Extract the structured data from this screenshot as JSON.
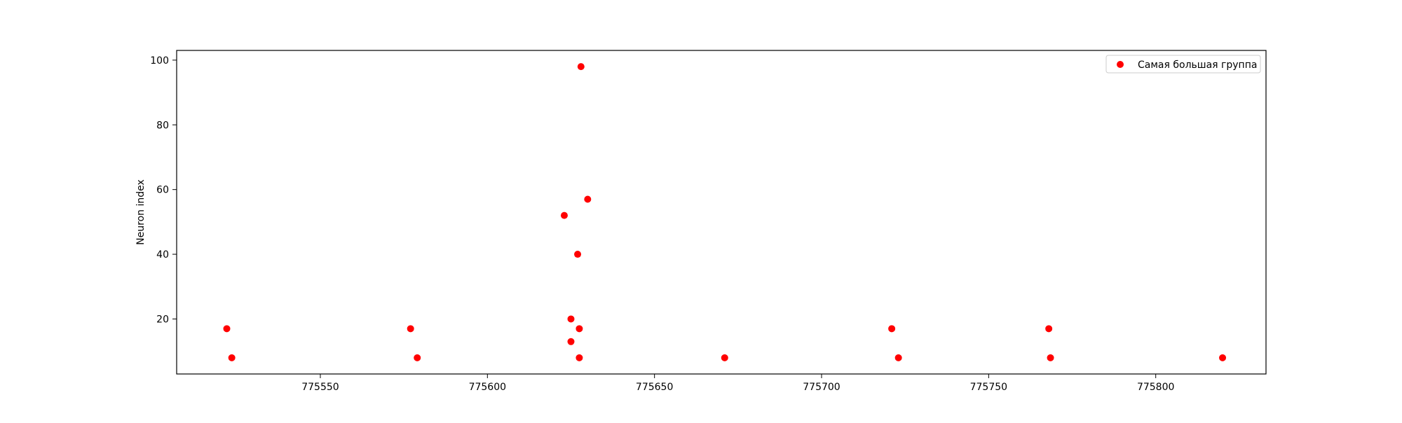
{
  "chart_data": {
    "type": "scatter",
    "title": "",
    "xlabel": "",
    "ylabel": "Neuron index",
    "xlim": [
      775507,
      775833
    ],
    "ylim": [
      3,
      103
    ],
    "xticks": [
      775550,
      775600,
      775650,
      775700,
      775750,
      775800
    ],
    "yticks": [
      20,
      40,
      60,
      80,
      100
    ],
    "xtick_labels": [
      "775550",
      "775600",
      "775650",
      "775700",
      "775750",
      "775800"
    ],
    "ytick_labels": [
      "20",
      "40",
      "60",
      "80",
      "100"
    ],
    "grid": false,
    "legend_position": "upper right",
    "series": [
      {
        "name": "Самая большая группа",
        "color": "#ff0000",
        "marker": "circle",
        "points": [
          {
            "x": 775522,
            "y": 17
          },
          {
            "x": 775523.5,
            "y": 8
          },
          {
            "x": 775577,
            "y": 17
          },
          {
            "x": 775579,
            "y": 8
          },
          {
            "x": 775623,
            "y": 52
          },
          {
            "x": 775625,
            "y": 20
          },
          {
            "x": 775625,
            "y": 13
          },
          {
            "x": 775627,
            "y": 40
          },
          {
            "x": 775627.5,
            "y": 17
          },
          {
            "x": 775627.5,
            "y": 8
          },
          {
            "x": 775628,
            "y": 98
          },
          {
            "x": 775630,
            "y": 57
          },
          {
            "x": 775671,
            "y": 8
          },
          {
            "x": 775721,
            "y": 17
          },
          {
            "x": 775723,
            "y": 8
          },
          {
            "x": 775768,
            "y": 17
          },
          {
            "x": 775768.5,
            "y": 8
          },
          {
            "x": 775820,
            "y": 8
          }
        ]
      }
    ]
  }
}
